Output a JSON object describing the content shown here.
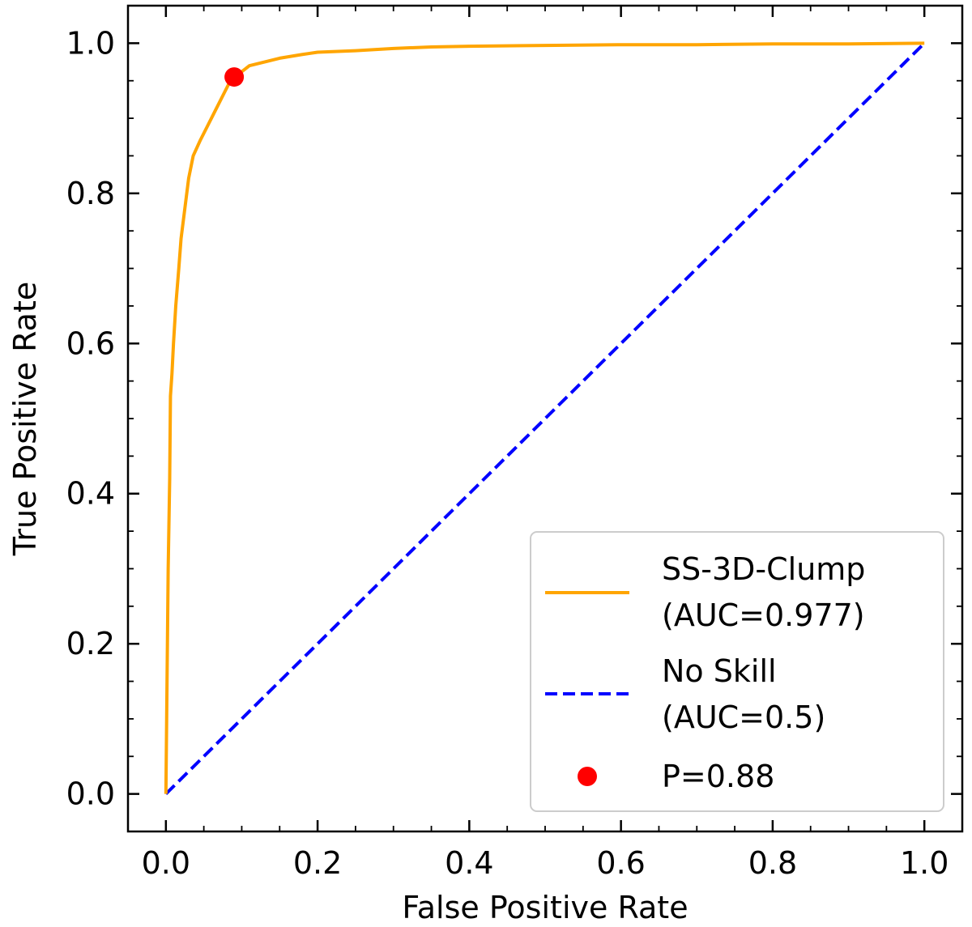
{
  "chart_data": {
    "type": "line",
    "title": "",
    "xlabel": "False Positive Rate",
    "ylabel": "True Positive Rate",
    "xlim": [
      -0.05,
      1.05
    ],
    "ylim": [
      -0.05,
      1.05
    ],
    "xticks": [
      "0.0",
      "0.2",
      "0.4",
      "0.6",
      "0.8",
      "1.0"
    ],
    "yticks": [
      "0.0",
      "0.2",
      "0.4",
      "0.6",
      "0.8",
      "1.0"
    ],
    "grid": false,
    "legend_position": "lower-right",
    "series": [
      {
        "name": "SS-3D-Clump",
        "name_line2": "(AUC=0.977)",
        "style": "solid",
        "color": "#ffa500",
        "x": [
          0.0,
          0.0015,
          0.003,
          0.005,
          0.006,
          0.008,
          0.01,
          0.013,
          0.017,
          0.02,
          0.025,
          0.03,
          0.036,
          0.045,
          0.055,
          0.065,
          0.075,
          0.085,
          0.09,
          0.1,
          0.11,
          0.13,
          0.15,
          0.18,
          0.2,
          0.25,
          0.3,
          0.35,
          0.4,
          0.5,
          0.6,
          0.7,
          0.8,
          0.9,
          1.0
        ],
        "y": [
          0.0,
          0.15,
          0.3,
          0.42,
          0.53,
          0.56,
          0.6,
          0.65,
          0.7,
          0.74,
          0.78,
          0.82,
          0.85,
          0.87,
          0.89,
          0.91,
          0.93,
          0.95,
          0.955,
          0.962,
          0.97,
          0.975,
          0.98,
          0.985,
          0.988,
          0.99,
          0.993,
          0.995,
          0.996,
          0.997,
          0.998,
          0.998,
          0.999,
          0.999,
          1.0
        ]
      },
      {
        "name": "No Skill",
        "name_line2": "(AUC=0.5)",
        "style": "dashed",
        "color": "#0000ff",
        "x": [
          0.0,
          1.0
        ],
        "y": [
          0.0,
          1.0
        ]
      }
    ],
    "points": [
      {
        "name": "P=0.88",
        "color": "#ff0000",
        "x": 0.09,
        "y": 0.955
      }
    ]
  }
}
